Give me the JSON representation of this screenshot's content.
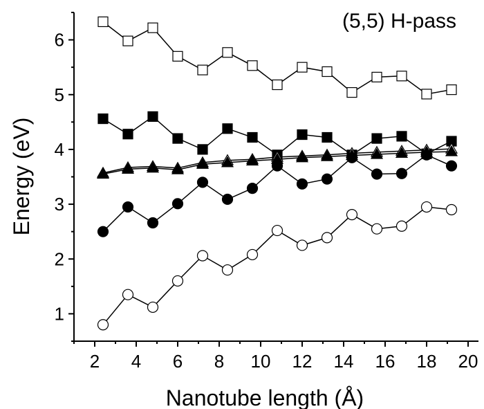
{
  "chart_data": {
    "type": "line",
    "title": "",
    "annotation": "(5,5) H-pass",
    "xlabel": "Nanotube length (Å)",
    "ylabel": "Energy (eV)",
    "xlim": [
      1,
      20.5
    ],
    "ylim": [
      0.5,
      6.5
    ],
    "xticks": [
      2,
      4,
      6,
      8,
      10,
      12,
      14,
      16,
      18,
      20
    ],
    "yticks": [
      1,
      2,
      3,
      4,
      5,
      6
    ],
    "grid": false,
    "x": [
      2.4,
      3.6,
      4.8,
      6.0,
      7.2,
      8.4,
      9.6,
      10.8,
      12.0,
      13.2,
      14.4,
      15.6,
      16.8,
      18.0,
      19.2
    ],
    "series": [
      {
        "marker": "open-square",
        "color": "#000000",
        "values": [
          6.33,
          5.98,
          6.22,
          5.7,
          5.45,
          5.77,
          5.53,
          5.18,
          5.5,
          5.42,
          5.04,
          5.32,
          5.34,
          5.01,
          5.09
        ]
      },
      {
        "marker": "filled-square",
        "color": "#000000",
        "values": [
          4.56,
          4.28,
          4.6,
          4.2,
          4.0,
          4.38,
          4.22,
          3.9,
          4.27,
          4.22,
          3.9,
          4.2,
          4.24,
          3.92,
          4.15
        ]
      },
      {
        "marker": "open-triangle",
        "color": "#000000",
        "values": [
          3.57,
          3.67,
          3.69,
          3.66,
          3.76,
          3.8,
          3.82,
          3.86,
          3.88,
          3.9,
          3.93,
          3.95,
          3.97,
          3.99,
          4.01
        ]
      },
      {
        "marker": "filled-triangle",
        "color": "#000000",
        "values": [
          3.55,
          3.64,
          3.66,
          3.63,
          3.73,
          3.76,
          3.79,
          3.82,
          3.85,
          3.87,
          3.89,
          3.91,
          3.93,
          3.95,
          3.96
        ]
      },
      {
        "marker": "filled-circle",
        "color": "#000000",
        "values": [
          2.5,
          2.95,
          2.66,
          3.01,
          3.4,
          3.09,
          3.29,
          3.7,
          3.37,
          3.46,
          3.85,
          3.55,
          3.56,
          3.9,
          3.7
        ]
      },
      {
        "marker": "open-circle",
        "color": "#000000",
        "values": [
          0.8,
          1.35,
          1.12,
          1.6,
          2.06,
          1.8,
          2.08,
          2.52,
          2.25,
          2.39,
          2.81,
          2.55,
          2.6,
          2.95,
          2.9
        ]
      }
    ]
  }
}
